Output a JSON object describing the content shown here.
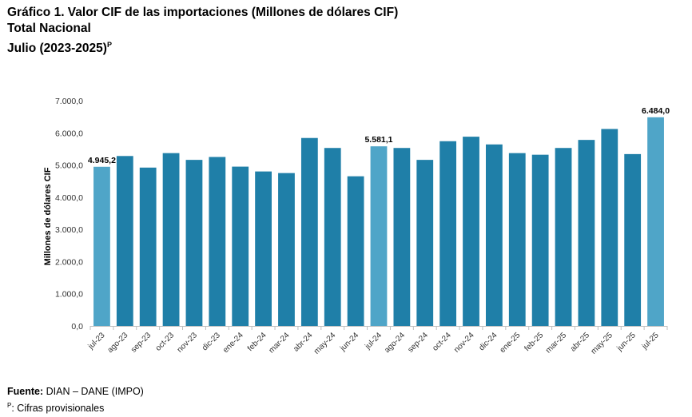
{
  "header": {
    "title": "Gráfico 1. Valor CIF de las importaciones (Millones de dólares CIF)",
    "subtitle": "Total Nacional",
    "period": "Julio (2023-2025)",
    "period_marker": "P"
  },
  "chart_data": {
    "type": "bar",
    "ylabel": "Millones de dólares CIF",
    "xlabel": "",
    "ylim": [
      0,
      7000
    ],
    "yticks": [
      "0,0",
      "1.000,0",
      "2.000,0",
      "3.000,0",
      "4.000,0",
      "5.000,0",
      "6.000,0",
      "7.000,0"
    ],
    "grid": false,
    "categories": [
      "jul-23",
      "ago-23",
      "sep-23",
      "oct-23",
      "nov-23",
      "dic-23",
      "ene-24",
      "feb-24",
      "mar-24",
      "abr-24",
      "may-24",
      "jun-24",
      "jul-24",
      "ago-24",
      "sep-24",
      "oct-24",
      "nov-24",
      "dic-24",
      "ene-25",
      "feb-25",
      "mar-25",
      "abr-25",
      "may-25",
      "jun-25",
      "jul-25"
    ],
    "values": [
      4945.2,
      5280,
      4920,
      5370,
      5160,
      5250,
      4950,
      4800,
      4750,
      5840,
      5530,
      4650,
      5581.1,
      5530,
      5160,
      5740,
      5880,
      5640,
      5370,
      5320,
      5530,
      5780,
      6120,
      5340,
      6484.0
    ],
    "highlight_indices": [
      0,
      12,
      24
    ],
    "data_labels": [
      {
        "index": 0,
        "text": "4.945,2"
      },
      {
        "index": 12,
        "text": "5.581,1"
      },
      {
        "index": 24,
        "text": "6.484,0"
      }
    ],
    "colors": {
      "bar": "#1f7fa8",
      "highlight": "#4fa5c8",
      "axis": "#bfbfbf"
    }
  },
  "footer": {
    "source_label": "Fuente:",
    "source_text": " DIAN – DANE (IMPO)",
    "note_marker": "P",
    "note_text": ": Cifras provisionales"
  }
}
